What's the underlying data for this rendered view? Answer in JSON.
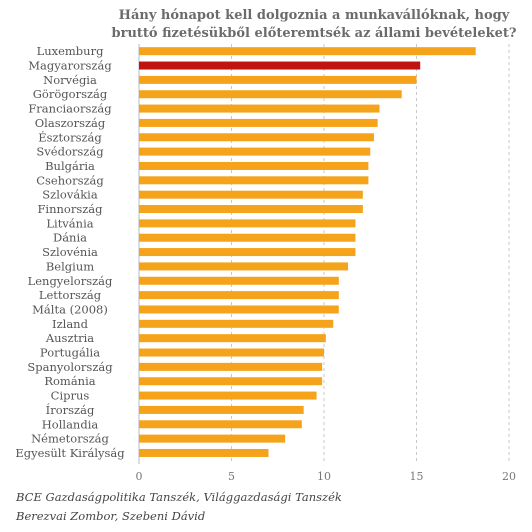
{
  "chart_data": {
    "type": "bar",
    "orientation": "horizontal",
    "title_lines": [
      "Hány hónapot kell dolgoznia a munkavállóknak, hogy",
      "bruttó fizetésükből előteremtsék az állami bevételeket?"
    ],
    "categories": [
      "Luxemburg",
      "Magyarország",
      "Norvégia",
      "Görögország",
      "Franciaország",
      "Olaszország",
      "Észtország",
      "Svédország",
      "Bulgária",
      "Csehország",
      "Szlovákia",
      "Finnország",
      "Litvánia",
      "Dánia",
      "Szlovénia",
      "Belgium",
      "Lengyelország",
      "Lettország",
      "Málta (2008)",
      "Izland",
      "Ausztria",
      "Portugália",
      "Spanyolország",
      "Románia",
      "Ciprus",
      "Írország",
      "Hollandia",
      "Németország",
      "Egyesült Királyság"
    ],
    "values": [
      18.2,
      15.2,
      15.0,
      14.2,
      13.0,
      12.9,
      12.7,
      12.5,
      12.4,
      12.4,
      12.1,
      12.1,
      11.7,
      11.7,
      11.7,
      11.3,
      10.8,
      10.8,
      10.8,
      10.5,
      10.1,
      10.0,
      9.9,
      9.9,
      9.6,
      8.9,
      8.8,
      7.9,
      7.0
    ],
    "highlight_index": 1,
    "xlim": [
      0,
      20
    ],
    "xticks": [
      0,
      5,
      10,
      15,
      20
    ],
    "xlabel": "",
    "ylabel": "",
    "grid": "vertical dashed",
    "colors": {
      "bar": "#f5a31a",
      "highlight": "#c0150f"
    },
    "source_lines": [
      "BCE Gazdaságpolitika Tanszék, Világgazdasági Tanszék",
      "Berezvai Zombor, Szebeni Dávid"
    ]
  }
}
